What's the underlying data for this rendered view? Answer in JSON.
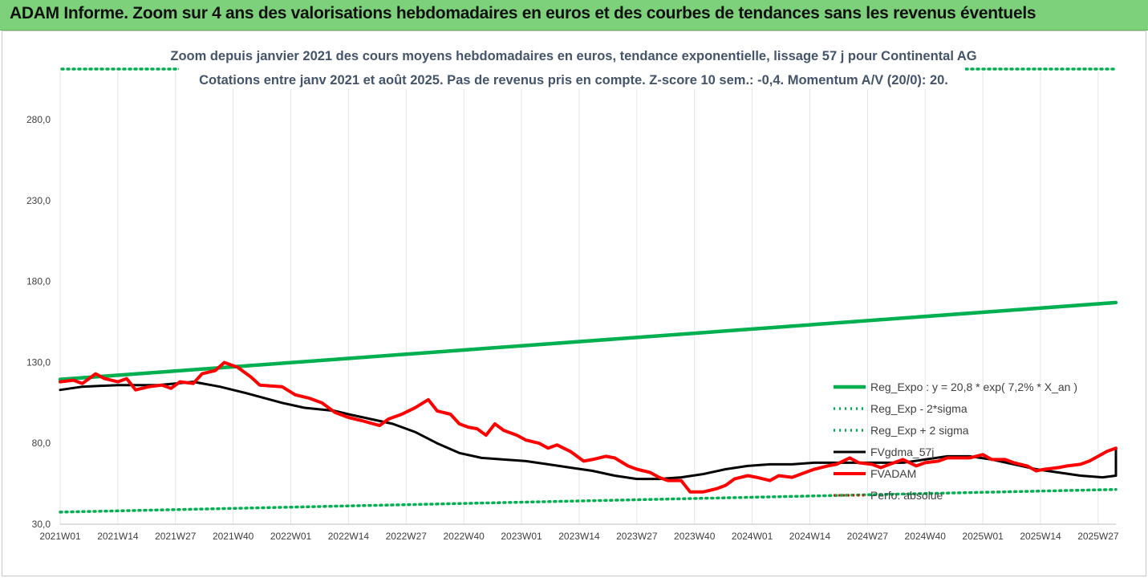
{
  "header": {
    "title": "ADAM Informe. Zoom sur 4 ans des valorisations hebdomadaires en euros et des courbes de tendances sans les revenus éventuels"
  },
  "colors": {
    "header_bg": "#7dd17a",
    "reg_expo": "#00b050",
    "fvadam": "#ff0000",
    "fvgdma": "#000000",
    "perf_absolue": "#ff0000"
  },
  "chart_data": {
    "type": "line",
    "title": "Zoom depuis janvier 2021 des cours moyens hebdomadaires en euros, tendance exponentielle, lissage 57 j pour Continental AG",
    "subtitle": "Cotations entre janv 2021 et août 2025. Pas de revenus pris en compte. Z-score 10 sem.: -0,4. Momentum A/V (20/0): 20.",
    "xlabel": "",
    "ylabel": "",
    "ylim": [
      30,
      290
    ],
    "yticks": [
      "30,0",
      "80,0",
      "130,0",
      "180,0",
      "230,0",
      "280,0"
    ],
    "x_tick_labels": [
      "2021W01",
      "2021W14",
      "2021W27",
      "2021W40",
      "2022W01",
      "2022W14",
      "2022W27",
      "2022W40",
      "2023W01",
      "2023W14",
      "2023W27",
      "2023W40",
      "2024W01",
      "2024W14",
      "2024W27",
      "2024W40",
      "2025W01",
      "2025W14",
      "2025W27"
    ],
    "grid": "vertical",
    "legend_position": "right",
    "n_weeks": 239,
    "series": [
      {
        "name": "Reg_Expo : y = 20,8 * exp( 7,2% *  X_an )",
        "style": "solid",
        "color": "#00b050",
        "points": [
          [
            0,
            119.5
          ],
          [
            238,
            167
          ]
        ]
      },
      {
        "name": "Reg_Exp - 2*sigma",
        "style": "dotted",
        "color": "#00b050",
        "points": [
          [
            0,
            37.5
          ],
          [
            238,
            51.5
          ]
        ]
      },
      {
        "name": "Reg_Exp + 2 sigma",
        "style": "dotted",
        "color": "#00b050",
        "points": [
          [
            0,
            300
          ],
          [
            238,
            300
          ]
        ]
      },
      {
        "name": "FVgdma_57j",
        "style": "solid",
        "color": "#000000",
        "points": [
          [
            0,
            113
          ],
          [
            5,
            115
          ],
          [
            13,
            116
          ],
          [
            22,
            116
          ],
          [
            26,
            117
          ],
          [
            30,
            118
          ],
          [
            36,
            115
          ],
          [
            42,
            111
          ],
          [
            50,
            105
          ],
          [
            55,
            102
          ],
          [
            62,
            100
          ],
          [
            65,
            98
          ],
          [
            70,
            95
          ],
          [
            75,
            92
          ],
          [
            80,
            87
          ],
          [
            85,
            80
          ],
          [
            90,
            74
          ],
          [
            95,
            71
          ],
          [
            100,
            70
          ],
          [
            105,
            69
          ],
          [
            110,
            67
          ],
          [
            115,
            65
          ],
          [
            120,
            63
          ],
          [
            125,
            60
          ],
          [
            130,
            58
          ],
          [
            135,
            58
          ],
          [
            140,
            59
          ],
          [
            145,
            61
          ],
          [
            150,
            64
          ],
          [
            155,
            66
          ],
          [
            160,
            67
          ],
          [
            165,
            67
          ],
          [
            170,
            68
          ],
          [
            175,
            68
          ],
          [
            180,
            68
          ],
          [
            185,
            68
          ],
          [
            190,
            68
          ],
          [
            195,
            70
          ],
          [
            200,
            72
          ],
          [
            205,
            72
          ],
          [
            210,
            70
          ],
          [
            215,
            67
          ],
          [
            220,
            64
          ],
          [
            225,
            62
          ],
          [
            230,
            60
          ],
          [
            235,
            59
          ],
          [
            240,
            60
          ],
          [
            245,
            61
          ],
          [
            250,
            62
          ],
          [
            255,
            64
          ],
          [
            260,
            66
          ],
          [
            265,
            68
          ],
          [
            270,
            71
          ],
          [
            275,
            74
          ],
          [
            280,
            76
          ],
          [
            283,
            76.5
          ]
        ]
      },
      {
        "name": "FVADAM",
        "style": "solid",
        "color": "#ff0000",
        "points": [
          [
            0,
            118
          ],
          [
            3,
            119
          ],
          [
            5,
            117
          ],
          [
            8,
            123
          ],
          [
            10,
            120
          ],
          [
            13,
            118
          ],
          [
            15,
            120
          ],
          [
            17,
            113
          ],
          [
            20,
            115
          ],
          [
            23,
            116
          ],
          [
            25,
            114
          ],
          [
            27,
            118
          ],
          [
            30,
            117
          ],
          [
            32,
            123
          ],
          [
            35,
            125
          ],
          [
            37,
            130
          ],
          [
            40,
            127
          ],
          [
            43,
            121
          ],
          [
            45,
            116
          ],
          [
            50,
            115
          ],
          [
            53,
            110
          ],
          [
            56,
            108
          ],
          [
            59,
            105
          ],
          [
            62,
            99
          ],
          [
            65,
            96
          ],
          [
            68,
            94
          ],
          [
            72,
            91
          ],
          [
            74,
            95
          ],
          [
            77,
            98
          ],
          [
            80,
            102
          ],
          [
            83,
            107
          ],
          [
            85,
            100
          ],
          [
            88,
            98
          ],
          [
            90,
            92
          ],
          [
            92,
            90
          ],
          [
            94,
            89
          ],
          [
            96,
            85
          ],
          [
            98,
            92
          ],
          [
            100,
            88
          ],
          [
            103,
            85
          ],
          [
            105,
            82
          ],
          [
            108,
            80
          ],
          [
            110,
            77
          ],
          [
            112,
            79
          ],
          [
            115,
            75
          ],
          [
            118,
            69
          ],
          [
            120,
            70
          ],
          [
            123,
            72
          ],
          [
            125,
            71
          ],
          [
            128,
            66
          ],
          [
            130,
            64
          ],
          [
            133,
            62
          ],
          [
            135,
            59
          ],
          [
            137,
            57
          ],
          [
            140,
            57
          ],
          [
            142,
            50
          ],
          [
            145,
            50
          ],
          [
            148,
            52
          ],
          [
            150,
            54
          ],
          [
            152,
            58
          ],
          [
            155,
            60
          ],
          [
            157,
            59
          ],
          [
            160,
            57
          ],
          [
            162,
            60
          ],
          [
            165,
            59
          ],
          [
            168,
            62
          ],
          [
            170,
            64
          ],
          [
            173,
            66
          ],
          [
            175,
            67
          ],
          [
            178,
            71
          ],
          [
            180,
            68
          ],
          [
            183,
            67
          ],
          [
            185,
            65
          ],
          [
            188,
            68
          ],
          [
            190,
            70
          ],
          [
            193,
            66
          ],
          [
            195,
            68
          ],
          [
            198,
            69
          ],
          [
            200,
            71
          ],
          [
            203,
            71
          ],
          [
            205,
            71
          ],
          [
            208,
            73
          ],
          [
            210,
            70
          ],
          [
            213,
            70
          ],
          [
            215,
            68
          ],
          [
            218,
            66
          ],
          [
            220,
            63
          ],
          [
            222,
            64
          ],
          [
            225,
            65
          ],
          [
            227,
            66
          ],
          [
            230,
            67
          ],
          [
            232,
            69
          ],
          [
            234,
            72
          ],
          [
            236,
            75
          ],
          [
            238,
            77
          ]
        ]
      },
      {
        "name": "Perfo. absolue",
        "style": "dotted",
        "color": "#ff0000",
        "points": []
      }
    ]
  }
}
